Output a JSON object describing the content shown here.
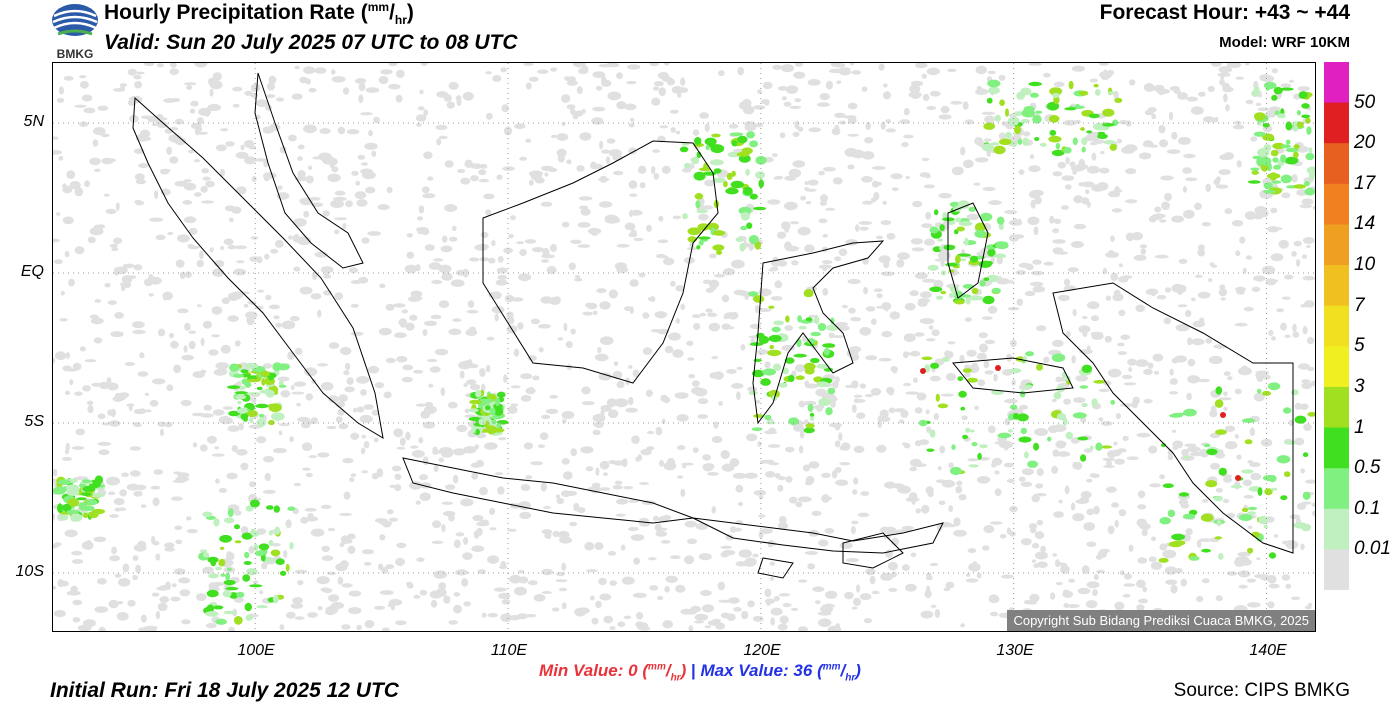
{
  "header": {
    "title": "Hourly Precipitation Rate (",
    "title_unit_num": "mm",
    "title_unit_den": "hr",
    "title_close": ")",
    "valid": "Valid: Sun 20 July 2025 07 UTC to 08 UTC",
    "forecast_hour": "Forecast Hour: +43 ~ +44",
    "model": "Model: WRF 10KM"
  },
  "logo": {
    "text": "BMKG",
    "icon": "bmkg-logo-icon"
  },
  "map": {
    "lat_labels": [
      "5N",
      "EQ",
      "5S",
      "10S"
    ],
    "lon_labels": [
      "100E",
      "110E",
      "120E",
      "130E",
      "140E"
    ],
    "lat_range": [
      -12,
      7
    ],
    "lon_range": [
      92,
      142
    ],
    "gridlines": true,
    "copyright": "Copyright Sub Bidang Prediksi Cuaca BMKG, 2025"
  },
  "legend": {
    "labels": [
      "50",
      "20",
      "17",
      "14",
      "10",
      "7",
      "5",
      "3",
      "1",
      "0.5",
      "0.1",
      "0.01"
    ],
    "colors": [
      "#e020c0",
      "#e02020",
      "#e86020",
      "#f08020",
      "#f0a020",
      "#f0c020",
      "#f0e020",
      "#f0f020",
      "#a0e020",
      "#40e020",
      "#80f080",
      "#c0f0c0",
      "#e0e0e0"
    ]
  },
  "footer": {
    "min_label": "Min Value:",
    "min_value": "0",
    "max_label": "Max Value:",
    "max_value": "36",
    "unit_num": "mm",
    "unit_den": "hr",
    "initial_run": "Initial Run: Fri 18 July 2025 12 UTC",
    "source": "Source: CIPS BMKG"
  }
}
